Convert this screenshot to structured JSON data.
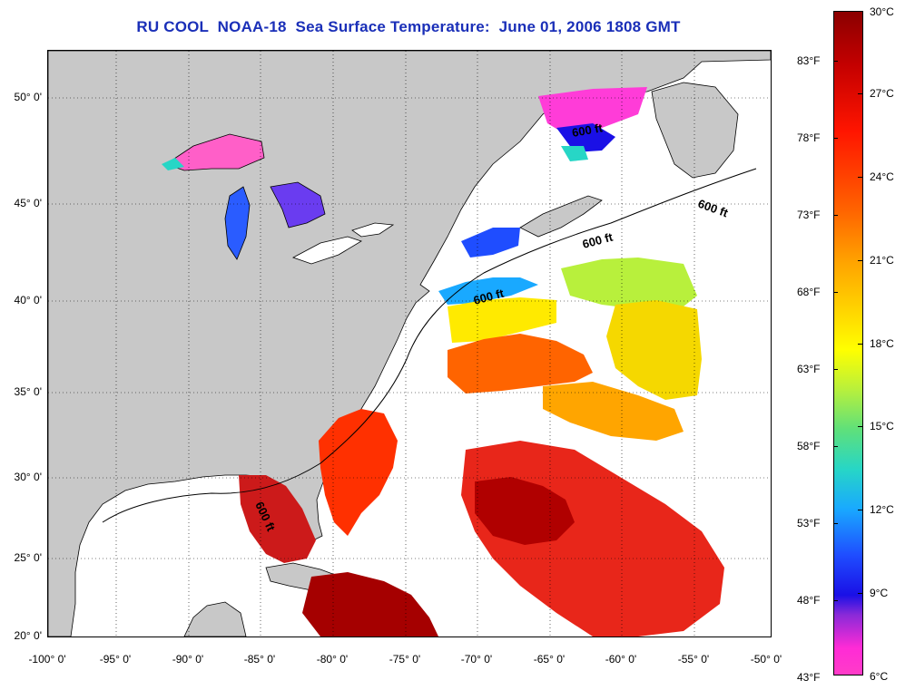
{
  "title": "RU COOL  NOAA-18  Sea Surface Temperature:  June 01, 2006 1808 GMT",
  "axes": {
    "lat_ticks": [
      "50° 0'",
      "45° 0'",
      "40° 0'",
      "35° 0'",
      "30° 0'",
      "25° 0'",
      "20° 0'"
    ],
    "lon_ticks": [
      "-100° 0'",
      "-95° 0'",
      "-90° 0'",
      "-85° 0'",
      "-80° 0'",
      "-75° 0'",
      "-70° 0'",
      "-65° 0'",
      "-60° 0'",
      "-55° 0'",
      "-50° 0'"
    ],
    "lat_range": [
      20,
      52.5
    ],
    "lon_range": [
      -100,
      -50
    ]
  },
  "isobath_labels": [
    "600 ft",
    "600 ft",
    "600 ft",
    "600 ft",
    "600 ft"
  ],
  "colorbar": {
    "fahrenheit": [
      "83°F",
      "78°F",
      "73°F",
      "68°F",
      "63°F",
      "58°F",
      "53°F",
      "48°F",
      "43°F"
    ],
    "celsius": [
      "30°C",
      "27°C",
      "24°C",
      "21°C",
      "18°C",
      "15°C",
      "12°C",
      "9°C",
      "6°C"
    ],
    "colors": {
      "warmest": "#8b0000",
      "warm": "#ff1500",
      "mid": "#ffff00",
      "cool": "#19a9ff",
      "cold": "#1a10e6",
      "coldest": "#ff3cc8"
    }
  },
  "colors": {
    "land": "#c8c8c8",
    "ocean_no_data": "#ffffff",
    "title_text": "#1a2fb8",
    "grid": "#000000"
  }
}
